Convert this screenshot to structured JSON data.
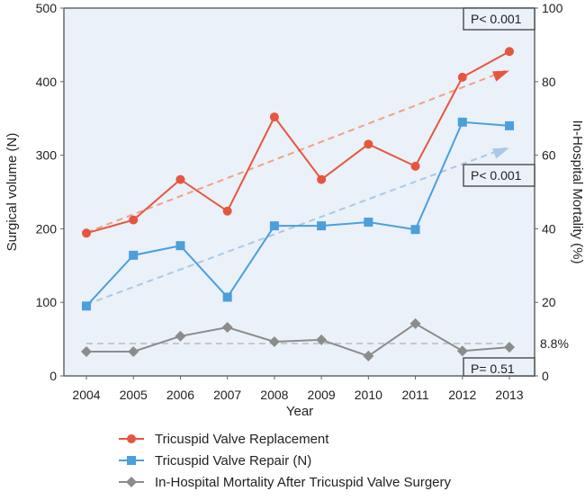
{
  "chart_data": {
    "type": "line",
    "x": [
      2004,
      2005,
      2006,
      2007,
      2008,
      2009,
      2010,
      2011,
      2012,
      2013
    ],
    "xlabel": "Year",
    "ylabel": "Surgical volume (N)",
    "y2label": "In-Hospital Mortality (%)",
    "ylim": [
      0,
      500
    ],
    "y2lim": [
      0,
      100
    ],
    "yticks": [
      0,
      100,
      200,
      300,
      400,
      500
    ],
    "y2ticks": [
      0,
      20,
      40,
      60,
      80,
      100
    ],
    "series": [
      {
        "name": "Tricuspid Valve Replacement",
        "axis": "left",
        "color": "#e8553e",
        "marker": "circle",
        "values": [
          194,
          212,
          267,
          224,
          352,
          267,
          315,
          285,
          406,
          441
        ],
        "trend": [
          195,
          415
        ],
        "p_label": "P< 0.001"
      },
      {
        "name": "Tricuspid Valve Repair (N)",
        "axis": "left",
        "color": "#4a9fdc",
        "marker": "square",
        "values": [
          95,
          164,
          177,
          107,
          204,
          204,
          209,
          199,
          345,
          340
        ],
        "trend": [
          97,
          310
        ],
        "p_label": "P< 0.001"
      },
      {
        "name": "In-Hospital Mortality After Tricuspid Valve Surgery",
        "axis": "right",
        "color": "#8c8c8c",
        "marker": "diamond",
        "values": [
          6.6,
          6.6,
          10.8,
          13.2,
          9.3,
          9.8,
          5.4,
          14.2,
          6.8,
          7.8
        ],
        "mean": 8.8,
        "mean_label": "8.8%",
        "p_label": "P= 0.51"
      }
    ],
    "legend": "bottom"
  }
}
